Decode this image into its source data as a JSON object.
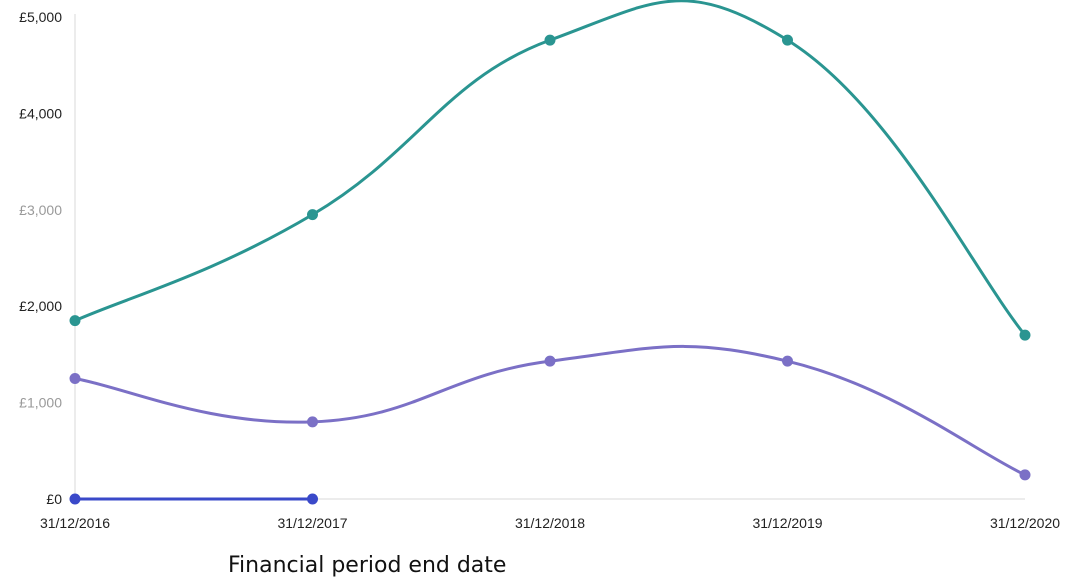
{
  "chart_data": {
    "type": "line",
    "categories": [
      "31/12/2016",
      "31/12/2017",
      "31/12/2018",
      "31/12/2019",
      "31/12/2020"
    ],
    "series": [
      {
        "color": "#2a9591",
        "values": [
          1850,
          2950,
          4760,
          4760,
          1700
        ]
      },
      {
        "color": "#7b70c6",
        "values": [
          1250,
          800,
          1430,
          1430,
          250
        ]
      },
      {
        "color": "#3a49c9",
        "values": [
          0,
          0,
          null,
          null,
          null
        ]
      }
    ],
    "y_ticks": [
      "£5,000",
      "£4,000",
      "£3,000",
      "£2,000",
      "£1,000",
      "£0"
    ],
    "ylim": [
      0,
      5000
    ],
    "xlabel": "Financial period end date",
    "ylabel": "",
    "grid": false,
    "curve": "smooth"
  }
}
